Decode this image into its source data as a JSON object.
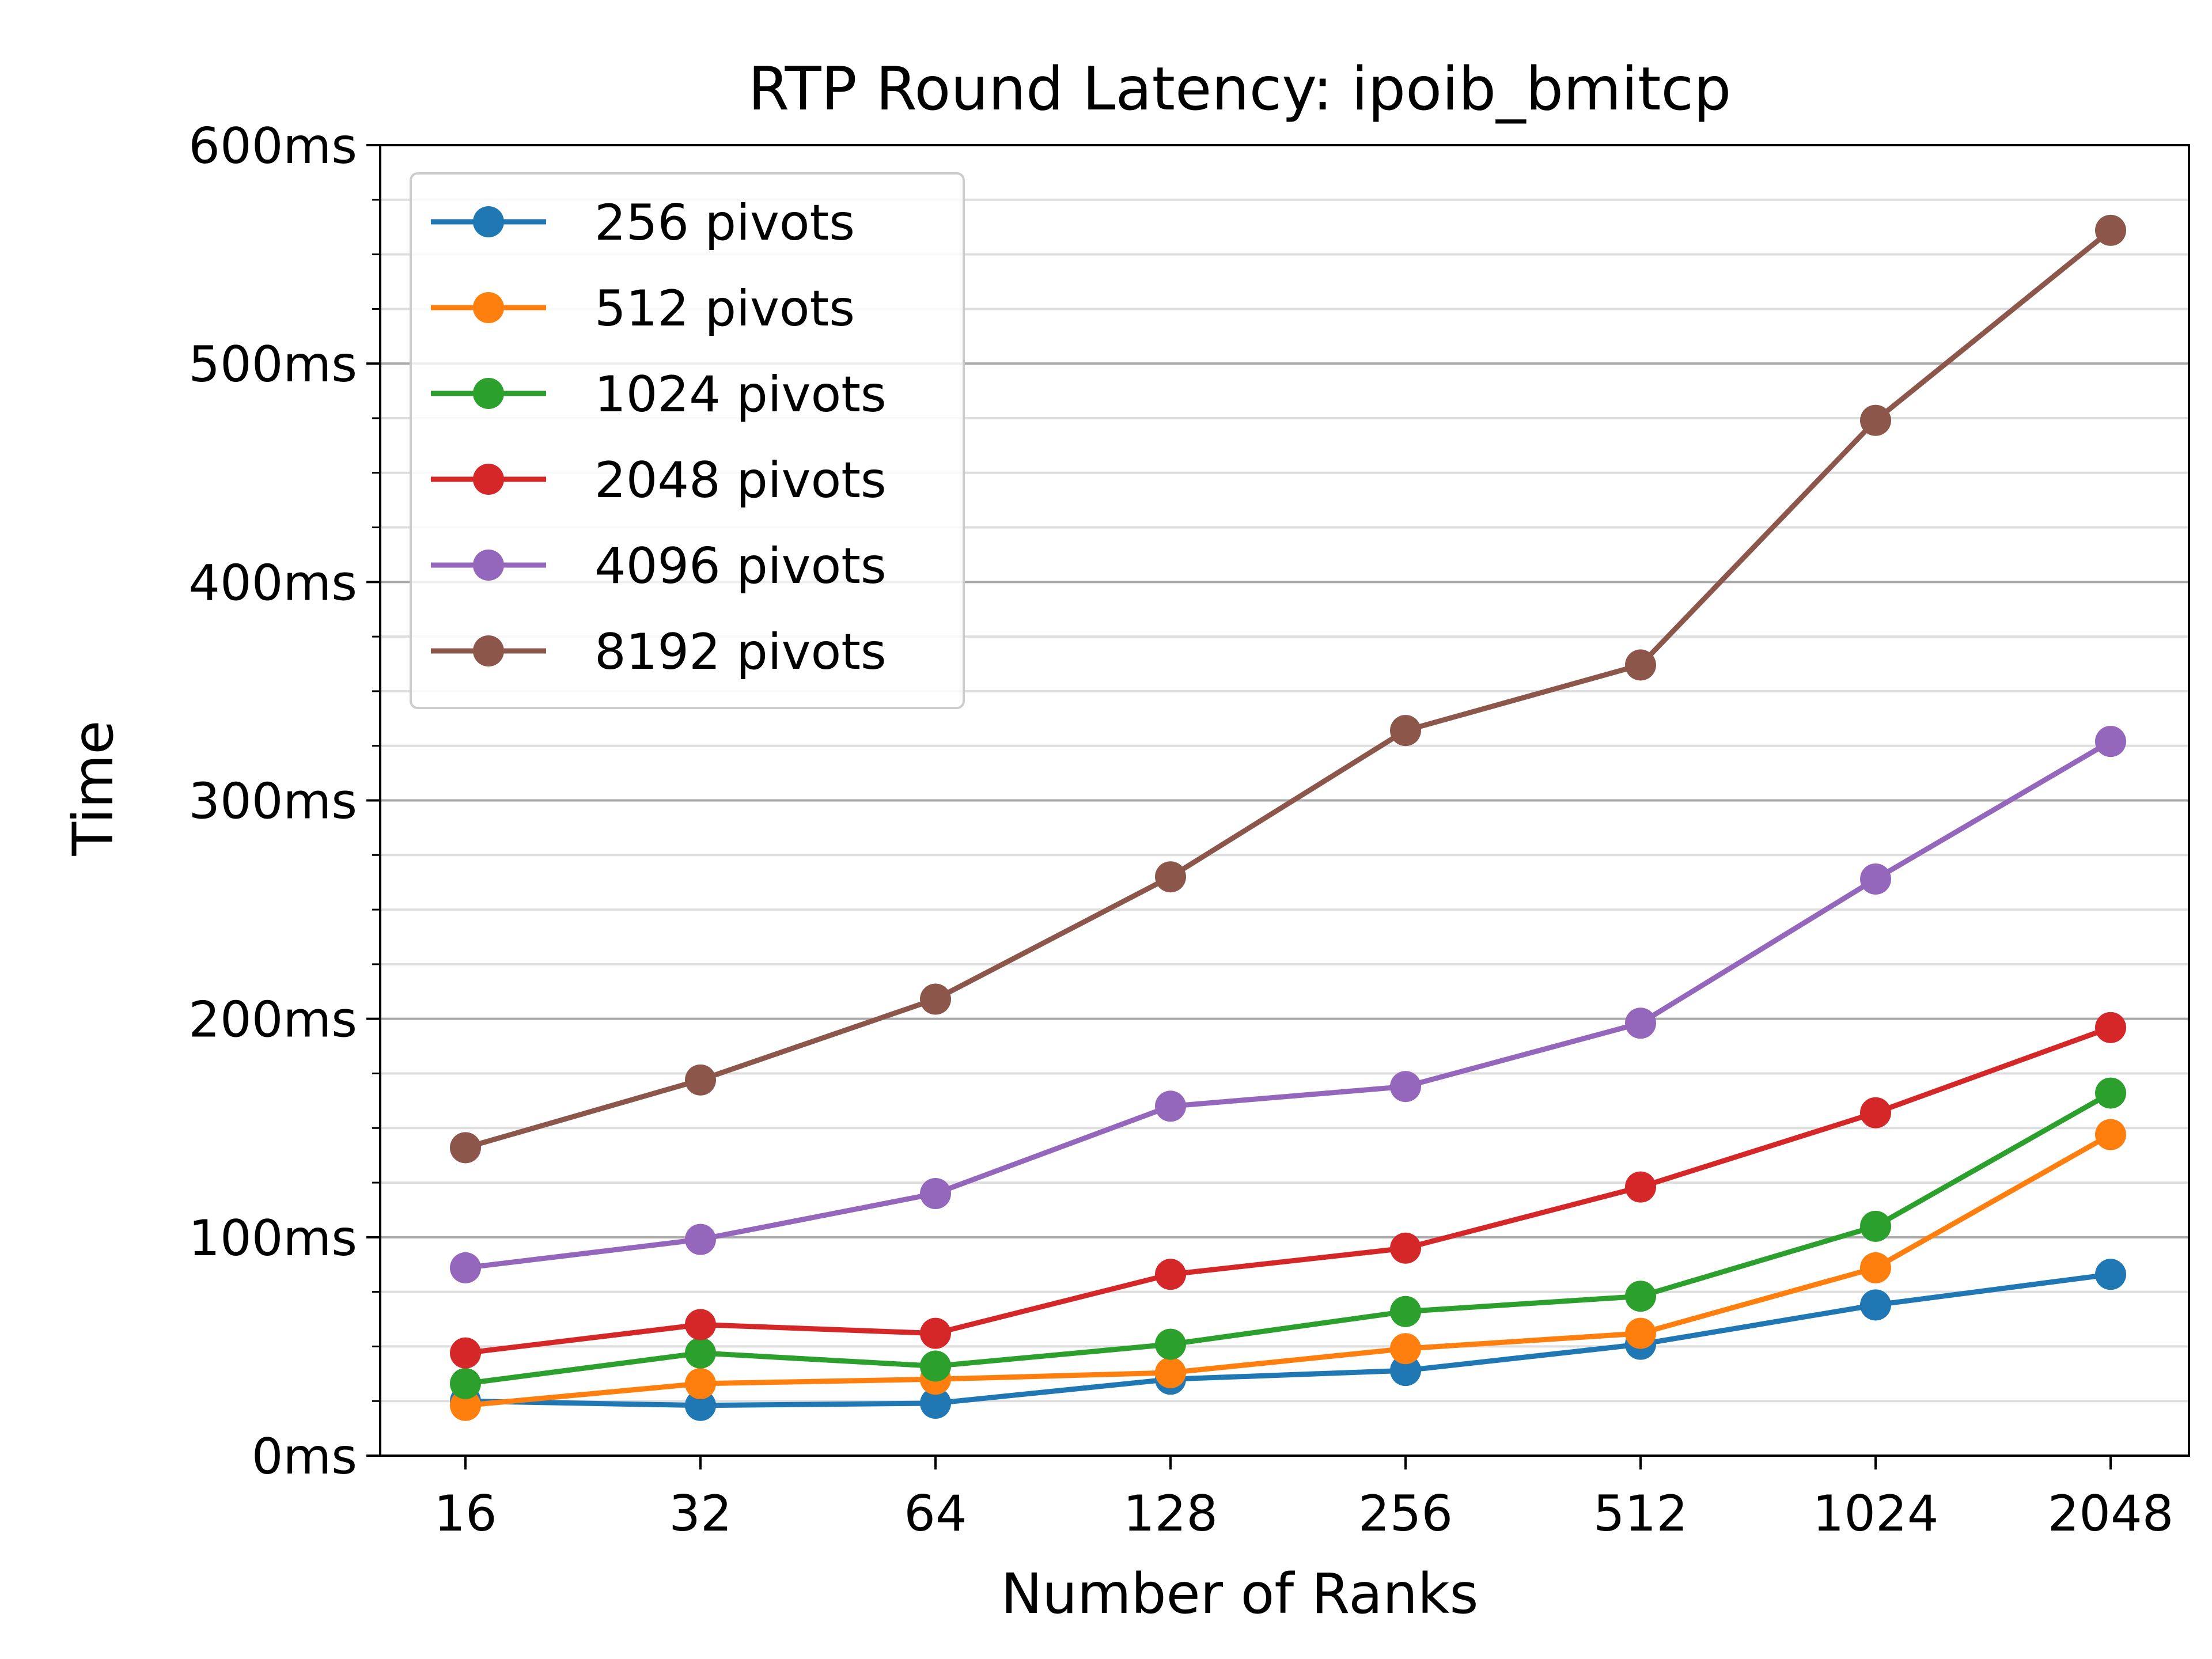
{
  "chart_data": {
    "type": "line",
    "title": "RTP Round Latency: ipoib_bmitcp",
    "xlabel": "Number of Ranks",
    "ylabel": "Time",
    "categories": [
      "16",
      "32",
      "64",
      "128",
      "256",
      "512",
      "1024",
      "2048"
    ],
    "y_ticks": [
      {
        "value": 0,
        "label": "0ms"
      },
      {
        "value": 100,
        "label": "100ms"
      },
      {
        "value": 200,
        "label": "200ms"
      },
      {
        "value": 300,
        "label": "300ms"
      },
      {
        "value": 400,
        "label": "400ms"
      },
      {
        "value": 500,
        "label": "500ms"
      },
      {
        "value": 600,
        "label": "600ms"
      }
    ],
    "ylim": [
      0,
      600
    ],
    "y_unit": "ms",
    "grid": {
      "major_y": true,
      "minor_y": true,
      "minor_step": 25
    },
    "legend_position": "top-left",
    "series": [
      {
        "name": "256 pivots",
        "color": "#1f77b4",
        "values": [
          25,
          23,
          24,
          35,
          39,
          51,
          69,
          83
        ]
      },
      {
        "name": "512 pivots",
        "color": "#ff7f0e",
        "values": [
          23,
          33,
          35,
          38,
          49,
          56,
          86,
          147
        ]
      },
      {
        "name": "1024 pivots",
        "color": "#2ca02c",
        "values": [
          33,
          47,
          41,
          51,
          66,
          73,
          105,
          166
        ]
      },
      {
        "name": "2048 pivots",
        "color": "#d62728",
        "values": [
          47,
          60,
          56,
          83,
          95,
          123,
          157,
          196
        ]
      },
      {
        "name": "4096 pivots",
        "color": "#9467bd",
        "values": [
          86,
          99,
          120,
          160,
          169,
          198,
          264,
          327
        ]
      },
      {
        "name": "8192 pivots",
        "color": "#8c564b",
        "values": [
          141,
          172,
          209,
          265,
          332,
          362,
          474,
          561
        ]
      }
    ]
  }
}
